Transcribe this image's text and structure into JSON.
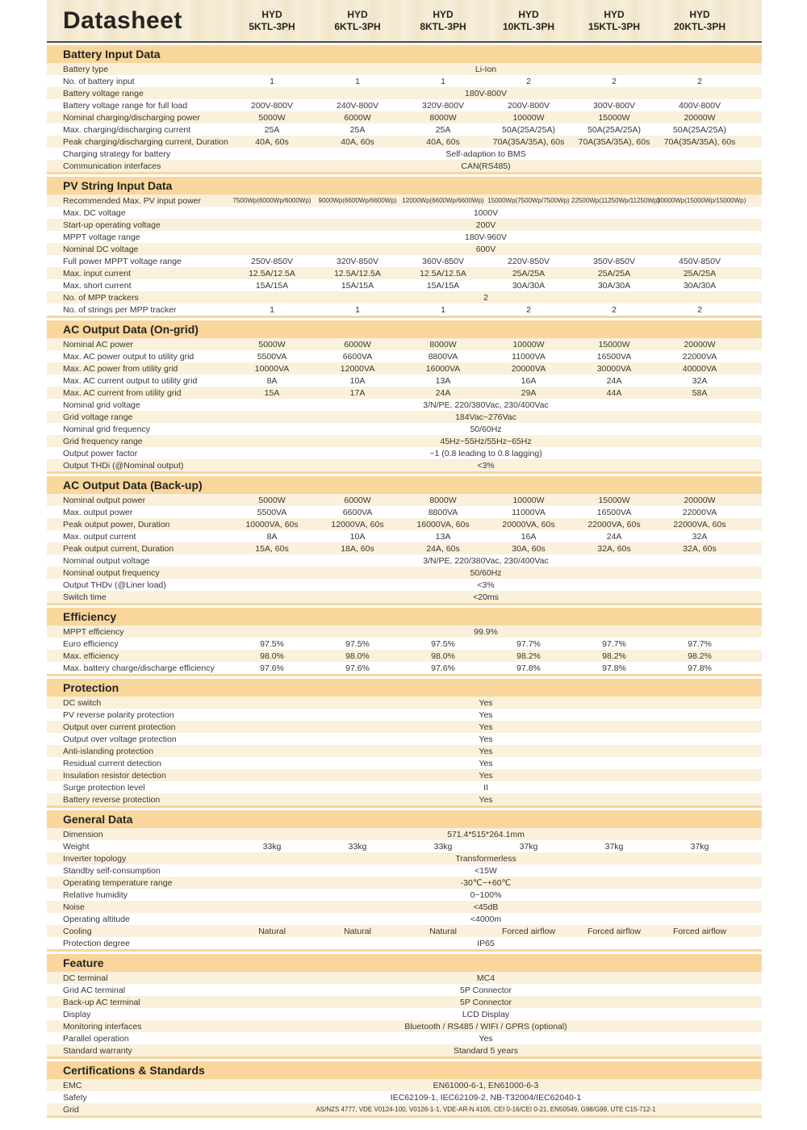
{
  "colors": {
    "section_bar": "#f8d69c",
    "row_cream": "#faf0dc",
    "row_white": "#ffffff",
    "header_texture": "#f3e9d1",
    "text_dark": "#262420"
  },
  "header": {
    "title": "Datasheet",
    "models": [
      {
        "brand": "HYD",
        "model": "5KTL-3PH"
      },
      {
        "brand": "HYD",
        "model": "6KTL-3PH"
      },
      {
        "brand": "HYD",
        "model": "8KTL-3PH"
      },
      {
        "brand": "HYD",
        "model": "10KTL-3PH"
      },
      {
        "brand": "HYD",
        "model": "15KTL-3PH"
      },
      {
        "brand": "HYD",
        "model": "20KTL-3PH"
      }
    ]
  },
  "sections": [
    {
      "title": "Battery Input Data",
      "rows": [
        {
          "label": "Battery type",
          "span": "Li-Ion"
        },
        {
          "label": "No. of battery input",
          "values": [
            "1",
            "1",
            "1",
            "2",
            "2",
            "2"
          ]
        },
        {
          "label": "Battery voltage range",
          "span": "180V-800V"
        },
        {
          "label": "Battery voltage range for full load",
          "values": [
            "200V-800V",
            "240V-800V",
            "320V-800V",
            "200V-800V",
            "300V-800V",
            "400V-800V"
          ]
        },
        {
          "label": "Nominal charging/discharging power",
          "values": [
            "5000W",
            "6000W",
            "8000W",
            "10000W",
            "15000W",
            "20000W"
          ]
        },
        {
          "label": "Max. charging/discharging current",
          "values": [
            "25A",
            "25A",
            "25A",
            "50A(25A/25A)",
            "50A(25A/25A)",
            "50A(25A/25A)"
          ]
        },
        {
          "label": "Peak charging/discharging current, Duration",
          "values": [
            "40A, 60s",
            "40A, 60s",
            "40A, 60s",
            "70A(35A/35A), 60s",
            "70A(35A/35A), 60s",
            "70A(35A/35A), 60s"
          ]
        },
        {
          "label": "Charging strategy for battery",
          "span": "Self-adaption to BMS"
        },
        {
          "label": "Communication interfaces",
          "span": "CAN(RS485)"
        }
      ]
    },
    {
      "title": "PV String Input Data",
      "rows": [
        {
          "label": "Recommended Max. PV input power",
          "small": true,
          "values": [
            "7500Wp(6000Wp/6000Wp)",
            "9000Wp(6600Wp/6600Wp)",
            "12000Wp(6600Wp/6600Wp)",
            "15000Wp(7500Wp/7500Wp)",
            "22500Wp(11250Wp/11250Wp)",
            "30000Wp(15000Wp/15000Wp)"
          ]
        },
        {
          "label": "Max. DC voltage",
          "span": "1000V"
        },
        {
          "label": "Start-up operating voltage",
          "span": "200V"
        },
        {
          "label": "MPPT voltage range",
          "span": "180V-960V"
        },
        {
          "label": "Nominal DC voltage",
          "span": "600V"
        },
        {
          "label": "Full power MPPT voltage range",
          "values": [
            "250V-850V",
            "320V-850V",
            "360V-850V",
            "220V-850V",
            "350V-850V",
            "450V-850V"
          ]
        },
        {
          "label": "Max. input current",
          "values": [
            "12.5A/12.5A",
            "12.5A/12.5A",
            "12.5A/12.5A",
            "25A/25A",
            "25A/25A",
            "25A/25A"
          ]
        },
        {
          "label": "Max. short current",
          "values": [
            "15A/15A",
            "15A/15A",
            "15A/15A",
            "30A/30A",
            "30A/30A",
            "30A/30A"
          ]
        },
        {
          "label": "No. of MPP trackers",
          "span": "2"
        },
        {
          "label": "No. of strings per MPP tracker",
          "values": [
            "1",
            "1",
            "1",
            "2",
            "2",
            "2"
          ]
        }
      ]
    },
    {
      "title": "AC Output Data (On-grid)",
      "rows": [
        {
          "label": "Nominal AC power",
          "values": [
            "5000W",
            "6000W",
            "8000W",
            "10000W",
            "15000W",
            "20000W"
          ]
        },
        {
          "label": "Max. AC power output to utility grid",
          "values": [
            "5500VA",
            "6600VA",
            "8800VA",
            "11000VA",
            "16500VA",
            "22000VA"
          ]
        },
        {
          "label": "Max. AC power from utility grid",
          "values": [
            "10000VA",
            "12000VA",
            "16000VA",
            "20000VA",
            "30000VA",
            "40000VA"
          ]
        },
        {
          "label": "Max. AC current output to utility grid",
          "values": [
            "8A",
            "10A",
            "13A",
            "16A",
            "24A",
            "32A"
          ]
        },
        {
          "label": "Max. AC current from utility grid",
          "values": [
            "15A",
            "17A",
            "24A",
            "29A",
            "44A",
            "58A"
          ]
        },
        {
          "label": "Nominal grid voltage",
          "span": "3/N/PE, 220/380Vac, 230/400Vac"
        },
        {
          "label": "Grid voltage range",
          "span": "184Vac~276Vac"
        },
        {
          "label": "Nominal grid frequency",
          "span": "50/60Hz"
        },
        {
          "label": "Grid frequency range",
          "span": "45Hz~55Hz/55Hz~65Hz"
        },
        {
          "label": "Output power factor",
          "span": "~1 (0.8 leading to 0.8 lagging)"
        },
        {
          "label": "Output THDi (@Nominal output)",
          "span": "<3%"
        }
      ]
    },
    {
      "title": "AC Output Data (Back-up)",
      "rows": [
        {
          "label": "Nominal output power",
          "values": [
            "5000W",
            "6000W",
            "8000W",
            "10000W",
            "15000W",
            "20000W"
          ]
        },
        {
          "label": "Max. output power",
          "values": [
            "5500VA",
            "6600VA",
            "8800VA",
            "11000VA",
            "16500VA",
            "22000VA"
          ]
        },
        {
          "label": "Peak output power, Duration",
          "values": [
            "10000VA, 60s",
            "12000VA, 60s",
            "16000VA, 60s",
            "20000VA, 60s",
            "22000VA, 60s",
            "22000VA, 60s"
          ]
        },
        {
          "label": "Max. output current",
          "values": [
            "8A",
            "10A",
            "13A",
            "16A",
            "24A",
            "32A"
          ]
        },
        {
          "label": "Peak output current, Duration",
          "values": [
            "15A, 60s",
            "18A, 60s",
            "24A, 60s",
            "30A, 60s",
            "32A, 60s",
            "32A, 60s"
          ]
        },
        {
          "label": "Nominal output voltage",
          "span": "3/N/PE, 220/380Vac, 230/400Vac"
        },
        {
          "label": "Nominal output frequency",
          "span": "50/60Hz"
        },
        {
          "label": "Output THDv (@Liner load)",
          "span": "<3%"
        },
        {
          "label": "Switch time",
          "span": "<20ms"
        }
      ]
    },
    {
      "title": "Efficiency",
      "rows": [
        {
          "label": "MPPT efficiency",
          "span": "99.9%"
        },
        {
          "label": "Euro efficiency",
          "values": [
            "97.5%",
            "97.5%",
            "97.5%",
            "97.7%",
            "97.7%",
            "97.7%"
          ]
        },
        {
          "label": "Max. efficiency",
          "values": [
            "98.0%",
            "98.0%",
            "98.0%",
            "98.2%",
            "98.2%",
            "98.2%"
          ]
        },
        {
          "label": "Max. battery charge/discharge efficiency",
          "values": [
            "97.6%",
            "97.6%",
            "97.6%",
            "97.8%",
            "97.8%",
            "97.8%"
          ]
        }
      ]
    },
    {
      "title": "Protection",
      "rows": [
        {
          "label": "DC switch",
          "span": "Yes"
        },
        {
          "label": "PV reverse polarity protection",
          "span": "Yes"
        },
        {
          "label": "Output over current protection",
          "span": "Yes"
        },
        {
          "label": "Output over voltage protection",
          "span": "Yes"
        },
        {
          "label": "Anti-islanding protection",
          "span": "Yes"
        },
        {
          "label": "Residual current detection",
          "span": "Yes"
        },
        {
          "label": "Insulation resistor detection",
          "span": "Yes"
        },
        {
          "label": "Surge protection level",
          "span": "II"
        },
        {
          "label": "Battery reverse protection",
          "span": "Yes"
        }
      ]
    },
    {
      "title": "General Data",
      "rows": [
        {
          "label": "Dimension",
          "span": "571.4*515*264.1mm"
        },
        {
          "label": "Weight",
          "values": [
            "33kg",
            "33kg",
            "33kg",
            "37kg",
            "37kg",
            "37kg"
          ]
        },
        {
          "label": "Inverter topology",
          "span": "Transformerless"
        },
        {
          "label": "Standby self-consumption",
          "span": "<15W"
        },
        {
          "label": "Operating temperature range",
          "span": "-30℃~+60℃"
        },
        {
          "label": "Relative humidity",
          "span": "0~100%"
        },
        {
          "label": "Noise",
          "span": "<45dB"
        },
        {
          "label": "Operating altitude",
          "span": "<4000m"
        },
        {
          "label": "Cooling",
          "values": [
            "Natural",
            "Natural",
            "Natural",
            "Forced airflow",
            "Forced airflow",
            "Forced airflow"
          ]
        },
        {
          "label": "Protection degree",
          "span": "IP65"
        }
      ]
    },
    {
      "title": "Feature",
      "rows": [
        {
          "label": "DC terminal",
          "span": "MC4"
        },
        {
          "label": "Grid AC terminal",
          "span": "5P Connector"
        },
        {
          "label": "Back-up AC terminal",
          "span": "5P Connector"
        },
        {
          "label": "Display",
          "span": "LCD Display"
        },
        {
          "label": "Monitoring interfaces",
          "span": "Bluetooth / RS485 / WIFI  / GPRS (optional)"
        },
        {
          "label": "Parallel operation",
          "span": "Yes"
        },
        {
          "label": "Standard warranty",
          "span": "Standard 5 years"
        }
      ]
    },
    {
      "title": "Certifications & Standards",
      "rows": [
        {
          "label": "EMC",
          "span": "EN61000-6-1, EN61000-6-3"
        },
        {
          "label": "Safety",
          "span": "IEC62109-1, IEC62109-2, NB-T32004/IEC62040-1"
        },
        {
          "label": "Grid",
          "small": true,
          "span": "AS/NZS 4777, VDE V0124-100, V0126-1-1, VDE-AR-N 4105, CEI 0-16/CEI 0-21, EN50549, G98/G99, UTE C15-712-1"
        }
      ]
    }
  ]
}
